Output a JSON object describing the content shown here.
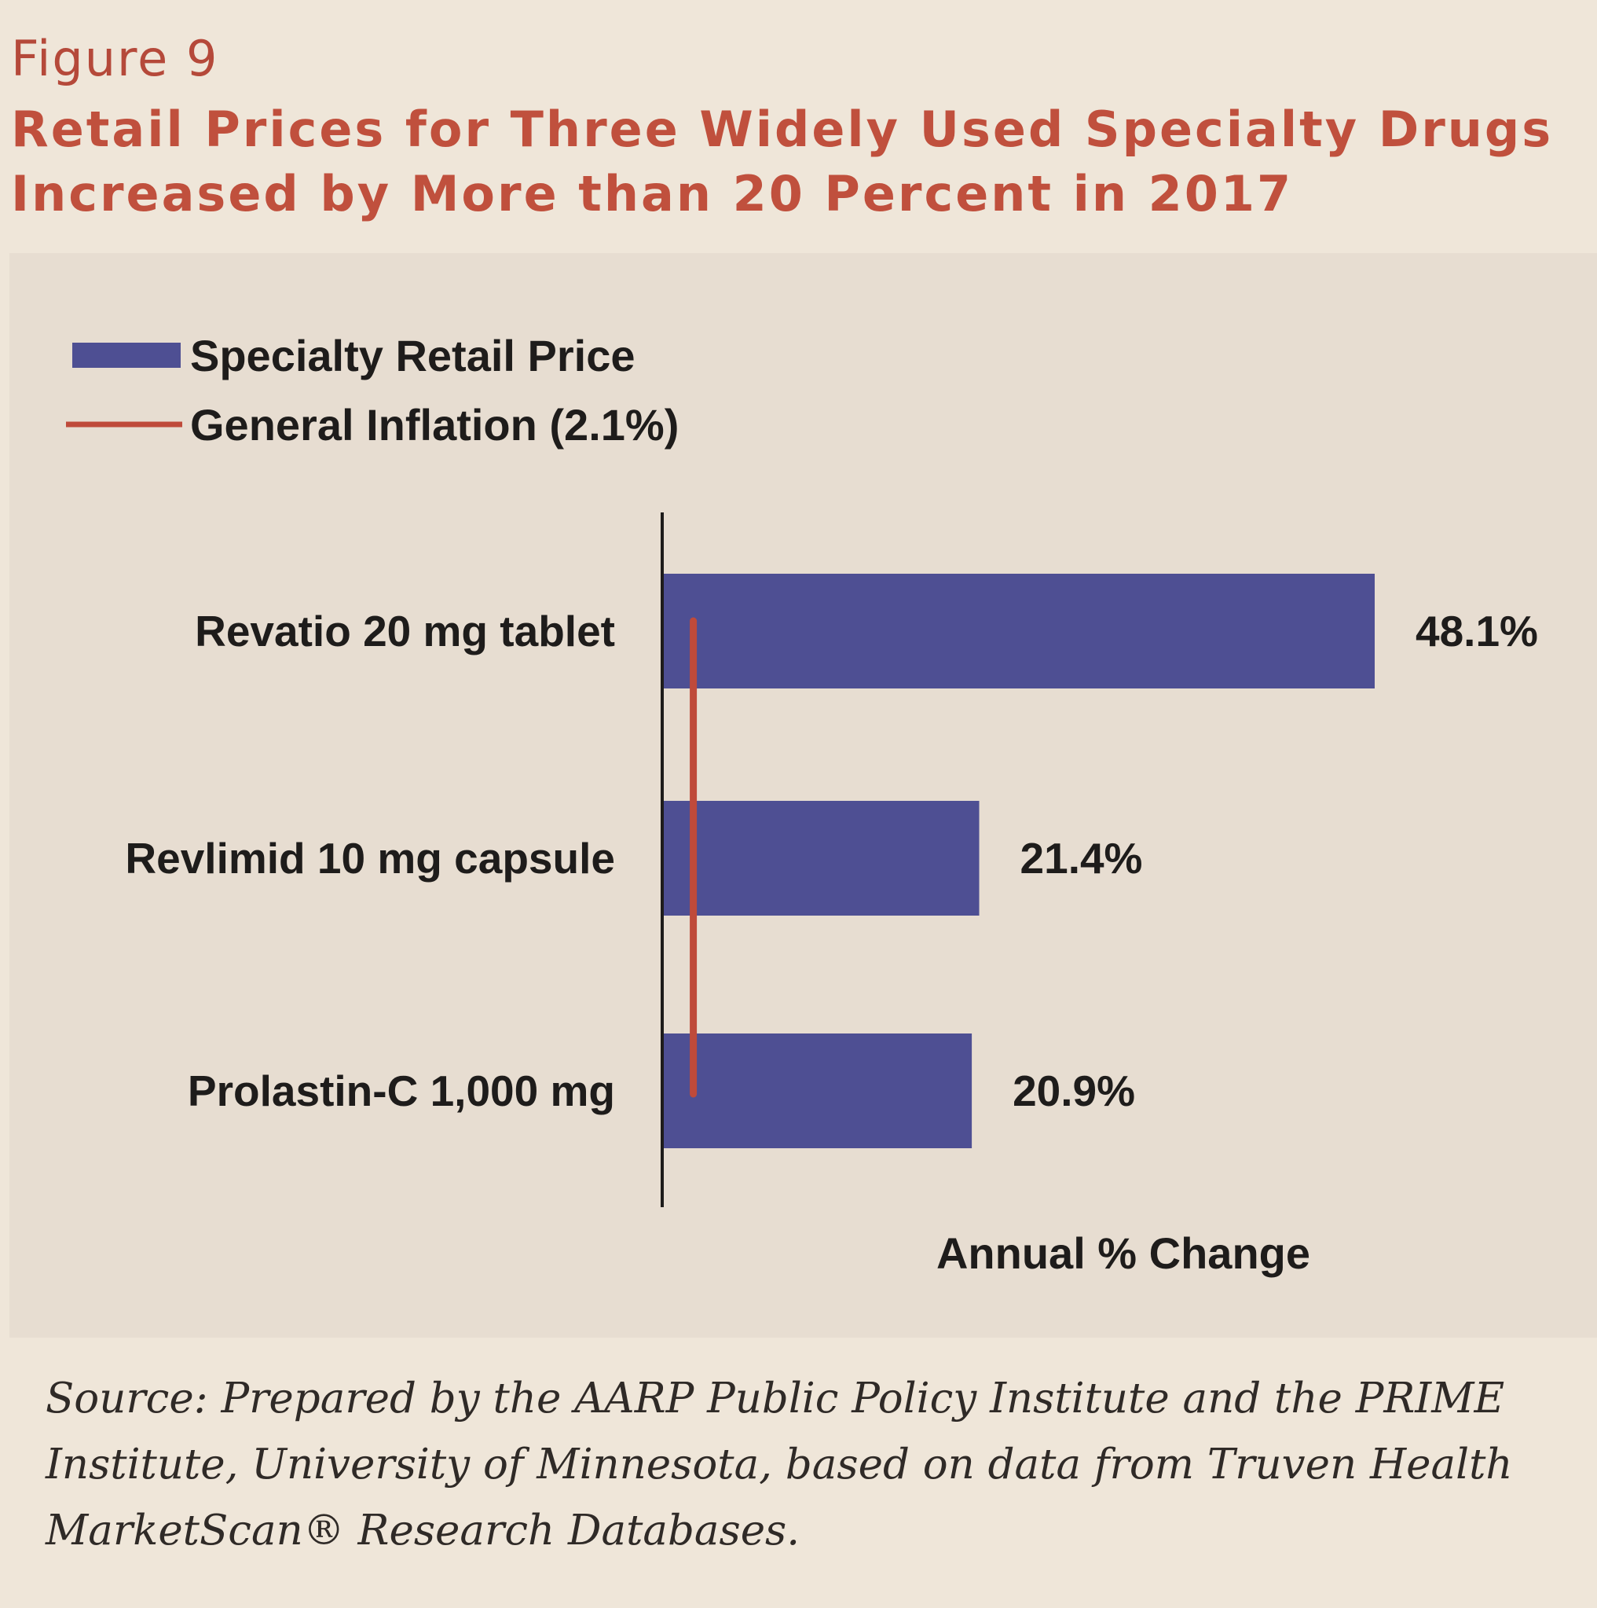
{
  "figure": {
    "label": "Figure 9",
    "title_lines": [
      "Retail Prices for Three Widely Used Specialty Drugs",
      "Increased by More than 20 Percent in 2017"
    ]
  },
  "source_lines": [
    "Source: Prepared by the AARP Public Policy Institute and the PRIME",
    "Institute, University of Minnesota, based on data from Truven Health",
    "MarketScan® Research Databases."
  ],
  "colors": {
    "bar": "#4e4f93",
    "inflation_line": "#bf4a3a",
    "title": "#c0503d"
  },
  "chart_data": {
    "type": "bar",
    "orientation": "horizontal",
    "title": "Retail Prices for Three Widely Used Specialty Drugs Increased by More than 20 Percent in 2017",
    "categories": [
      "Revatio 20 mg tablet",
      "Revlimid 10 mg capsule",
      "Prolastin-C 1,000 mg"
    ],
    "series": [
      {
        "name": "Specialty Retail Price",
        "values": [
          48.1,
          21.4,
          20.9
        ],
        "labels": [
          "48.1%",
          "21.4%",
          "20.9%"
        ]
      }
    ],
    "reference_line": {
      "name": "General Inflation (2.1%)",
      "value": 2.1
    },
    "legend": [
      {
        "label": "Specialty Retail Price",
        "kind": "bar"
      },
      {
        "label": "General Inflation (2.1%)",
        "kind": "line"
      }
    ],
    "legend_position": "top-left",
    "xlabel": "Annual % Change",
    "ylabel": "",
    "xlim": [
      0,
      48.1
    ],
    "grid": false
  }
}
